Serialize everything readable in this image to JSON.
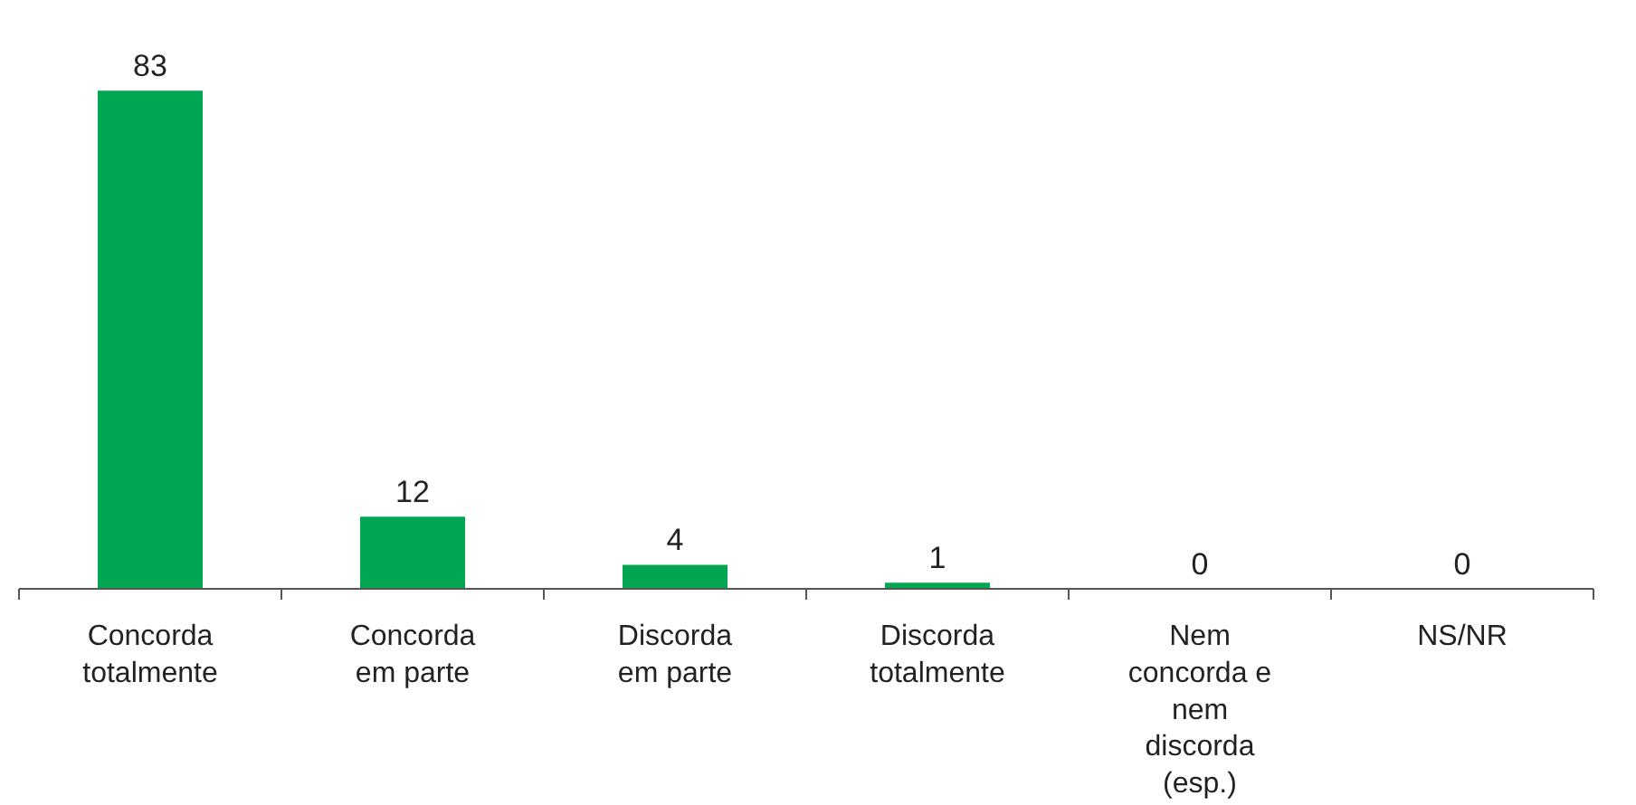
{
  "chart_data": {
    "type": "bar",
    "categories": [
      "Concorda totalmente",
      "Concorda em parte",
      "Discorda em parte",
      "Discorda totalmente",
      "Nem concorda e nem discorda (esp.)",
      "NS/NR"
    ],
    "values": [
      83,
      12,
      4,
      1,
      0,
      0
    ],
    "color": "#00a651",
    "data_labels": true
  }
}
